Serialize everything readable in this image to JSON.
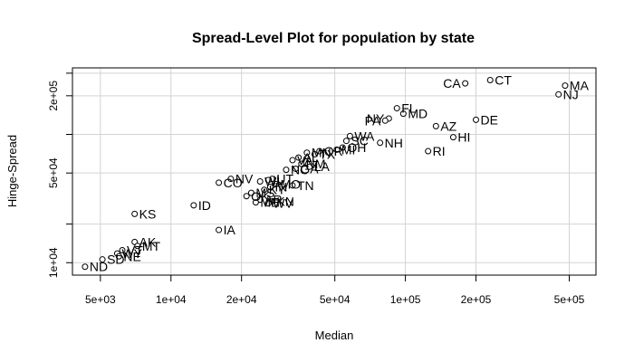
{
  "chart_data": {
    "type": "scatter",
    "title": "Spread-Level Plot for population by state",
    "xlabel": "Median",
    "ylabel": "Hinge-Spread",
    "log_x": true,
    "log_y": true,
    "xlim": [
      3800,
      650000
    ],
    "ylim": [
      8000,
      330000
    ],
    "x_ticks": [
      {
        "v": 5000,
        "label": "5e+03"
      },
      {
        "v": 10000,
        "label": "1e+04"
      },
      {
        "v": 20000,
        "label": "2e+04"
      },
      {
        "v": 50000,
        "label": "5e+04"
      },
      {
        "v": 100000,
        "label": "1e+05"
      },
      {
        "v": 200000,
        "label": "2e+05"
      },
      {
        "v": 500000,
        "label": "5e+05"
      }
    ],
    "y_ticks": [
      {
        "v": 10000,
        "label": "1e+04"
      },
      {
        "v": 20000,
        "label": null
      },
      {
        "v": 50000,
        "label": "5e+04"
      },
      {
        "v": 100000,
        "label": null
      },
      {
        "v": 200000,
        "label": "2e+05"
      },
      {
        "v": 300000,
        "label": null
      }
    ],
    "grid": true,
    "point_color": "#000000",
    "grid_color": "#d3d3d3",
    "points": [
      {
        "label": "CT",
        "x": 230000,
        "y": 265000
      },
      {
        "label": "CA",
        "x": 180000,
        "y": 250000
      },
      {
        "label": "MA",
        "x": 480000,
        "y": 240000
      },
      {
        "label": "NJ",
        "x": 450000,
        "y": 205000
      },
      {
        "label": "FL",
        "x": 92000,
        "y": 160000
      },
      {
        "label": "MD",
        "x": 98000,
        "y": 145000
      },
      {
        "label": "NY",
        "x": 85000,
        "y": 133000
      },
      {
        "label": "PA",
        "x": 82000,
        "y": 128000
      },
      {
        "label": "DE",
        "x": 200000,
        "y": 130000
      },
      {
        "label": "AZ",
        "x": 135000,
        "y": 116000
      },
      {
        "label": "HI",
        "x": 160000,
        "y": 95000
      },
      {
        "label": "RI",
        "x": 125000,
        "y": 74000
      },
      {
        "label": "NH",
        "x": 78000,
        "y": 86000
      },
      {
        "label": "WA",
        "x": 58000,
        "y": 97000
      },
      {
        "label": "SC",
        "x": 56000,
        "y": 89000
      },
      {
        "label": "OH",
        "x": 54000,
        "y": 79000
      },
      {
        "label": "MI",
        "x": 51000,
        "y": 76000
      },
      {
        "label": "OR",
        "x": 43000,
        "y": 74000
      },
      {
        "label": "MN",
        "x": 38000,
        "y": 72000
      },
      {
        "label": "TX",
        "x": 41000,
        "y": 70000
      },
      {
        "label": "AL",
        "x": 35000,
        "y": 66000
      },
      {
        "label": "VA",
        "x": 33000,
        "y": 63000
      },
      {
        "label": "NM",
        "x": 36000,
        "y": 59000
      },
      {
        "label": "LA",
        "x": 39000,
        "y": 56000
      },
      {
        "label": "GA",
        "x": 34000,
        "y": 54000
      },
      {
        "label": "NC",
        "x": 31000,
        "y": 53000
      },
      {
        "label": "UT",
        "x": 27000,
        "y": 45000
      },
      {
        "label": "IL",
        "x": 26000,
        "y": 44000
      },
      {
        "label": "WI",
        "x": 24000,
        "y": 43000
      },
      {
        "label": "NV",
        "x": 18000,
        "y": 45000
      },
      {
        "label": "CO",
        "x": 16000,
        "y": 42000
      },
      {
        "label": "MO",
        "x": 28000,
        "y": 41000
      },
      {
        "label": "IN",
        "x": 26500,
        "y": 39000
      },
      {
        "label": "KY",
        "x": 25000,
        "y": 37000
      },
      {
        "label": "TN",
        "x": 33000,
        "y": 40000
      },
      {
        "label": "MS",
        "x": 22000,
        "y": 35000
      },
      {
        "label": "OK",
        "x": 21000,
        "y": 33000
      },
      {
        "label": "AR",
        "x": 24000,
        "y": 31000
      },
      {
        "label": "KN",
        "x": 27000,
        "y": 30000
      },
      {
        "label": "WV",
        "x": 26000,
        "y": 29000
      },
      {
        "label": "ME",
        "x": 23000,
        "y": 29500
      },
      {
        "label": "ID",
        "x": 12500,
        "y": 28000
      },
      {
        "label": "IA",
        "x": 16000,
        "y": 18000
      },
      {
        "label": "KS",
        "x": 7000,
        "y": 24000
      },
      {
        "label": "AK",
        "x": 7000,
        "y": 14500
      },
      {
        "label": "MT",
        "x": 7200,
        "y": 13500
      },
      {
        "label": "VT",
        "x": 6200,
        "y": 12500
      },
      {
        "label": "WY",
        "x": 5900,
        "y": 11800
      },
      {
        "label": "NE",
        "x": 6000,
        "y": 11200
      },
      {
        "label": "SD",
        "x": 5100,
        "y": 10600
      },
      {
        "label": "ND",
        "x": 4300,
        "y": 9300
      }
    ]
  }
}
